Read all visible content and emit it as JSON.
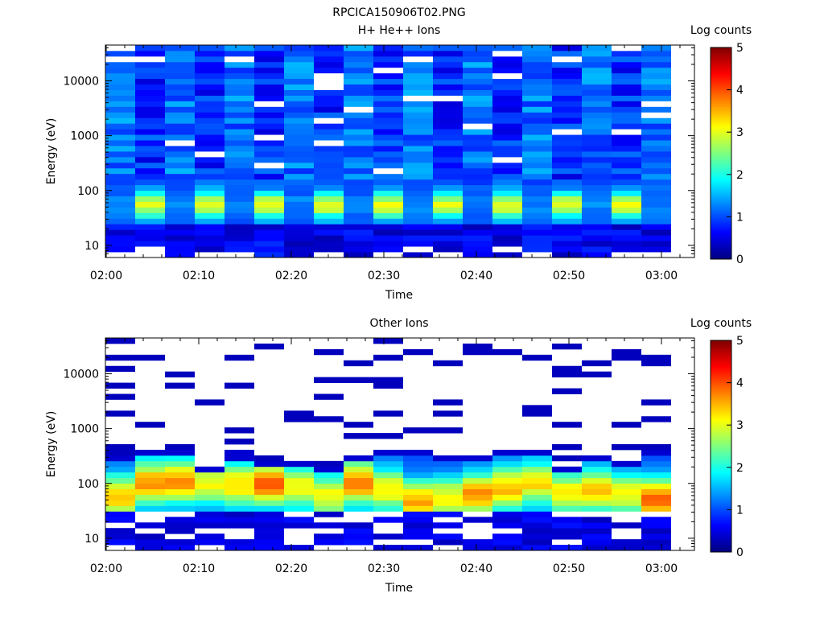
{
  "figure_title": "RPCICA150906T02.PNG",
  "chart_data": [
    {
      "type": "heatmap",
      "title": "H+ He++ Ions",
      "xlabel": "Time",
      "ylabel": "Energy (eV)",
      "x_ticks": [
        "02:00",
        "02:10",
        "02:20",
        "02:30",
        "02:40",
        "02:50",
        "03:00"
      ],
      "y_ticks": [
        "10",
        "100",
        "1000",
        "10000"
      ],
      "y_scale": "log",
      "ylim": [
        6,
        45000
      ],
      "xlim": [
        "02:00",
        "03:03"
      ],
      "colorbar": {
        "label": "Log counts",
        "range": [
          0,
          5
        ],
        "ticks": [
          "0",
          "1",
          "2",
          "3",
          "4",
          "5"
        ],
        "colormap": "jet"
      },
      "time_columns": [
        "02:00",
        "02:03",
        "02:06",
        "02:10",
        "02:13",
        "02:16",
        "02:19",
        "02:23",
        "02:26",
        "02:29",
        "02:33",
        "02:36",
        "02:39",
        "02:42",
        "02:46",
        "02:49",
        "02:52",
        "02:55",
        "02:59"
      ],
      "band_profile": {
        "background": "blue 0.5-1.5 log counts above 100 eV, with occasional missing (white) energy bins",
        "peak_energy_eV": [
          40,
          70
        ],
        "peak_log_counts_alternating": [
          1.3,
          3.0
        ]
      },
      "grid": false,
      "legend": "colorbar-right"
    },
    {
      "type": "heatmap",
      "title": "Other Ions",
      "xlabel": "Time",
      "ylabel": "Energy (eV)",
      "x_ticks": [
        "02:00",
        "02:10",
        "02:20",
        "02:30",
        "02:40",
        "02:50",
        "03:00"
      ],
      "y_ticks": [
        "10",
        "100",
        "1000",
        "10000"
      ],
      "y_scale": "log",
      "ylim": [
        6,
        45000
      ],
      "xlim": [
        "02:00",
        "03:03"
      ],
      "colorbar": {
        "label": "Log counts",
        "range": [
          0,
          5
        ],
        "ticks": [
          "0",
          "1",
          "2",
          "3",
          "4",
          "5"
        ],
        "colormap": "jet"
      },
      "time_columns": [
        "02:00",
        "02:03",
        "02:06",
        "02:10",
        "02:13",
        "02:16",
        "02:19",
        "02:23",
        "02:26",
        "02:29",
        "02:33",
        "02:36",
        "02:39",
        "02:42",
        "02:46",
        "02:49",
        "02:52",
        "02:55",
        "02:59"
      ],
      "band_profile": {
        "main_band_energy_eV": [
          28,
          250
        ],
        "peak_energy_eV": [
          45,
          110
        ],
        "peak_log_counts": 3.8,
        "sparse_high_energy_counts_log": 0.3
      },
      "grid": false,
      "legend": "colorbar-right"
    }
  ]
}
